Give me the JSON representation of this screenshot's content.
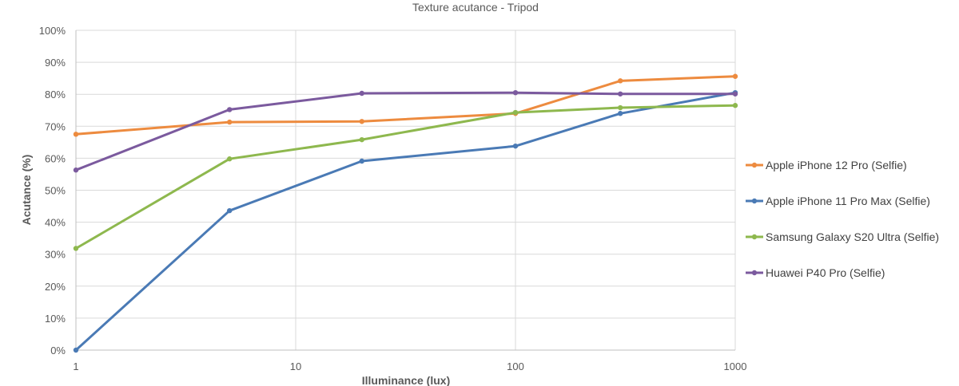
{
  "chart_data": {
    "type": "line",
    "title": "Texture acutance - Tripod",
    "xlabel": "Illuminance (lux)",
    "ylabel": "Acutance (%)",
    "x_scale": "log",
    "xlim": [
      1,
      1000
    ],
    "ylim": [
      0,
      100
    ],
    "x_ticks": [
      "1",
      "10",
      "100",
      "1000"
    ],
    "y_ticks": [
      "0%",
      "10%",
      "20%",
      "30%",
      "40%",
      "50%",
      "60%",
      "70%",
      "80%",
      "90%",
      "100%"
    ],
    "grid": true,
    "legend_position": "right",
    "x": [
      1,
      5,
      20,
      100,
      300,
      1000
    ],
    "series": [
      {
        "name": "Apple iPhone 12 Pro (Selfie)",
        "color": "#ED8B3F",
        "values": [
          67.5,
          71.3,
          71.5,
          74.0,
          84.2,
          85.6
        ]
      },
      {
        "name": "Apple iPhone 11 Pro Max (Selfie)",
        "color": "#4A7AB5",
        "values": [
          0.0,
          43.6,
          59.1,
          63.8,
          74.0,
          80.5
        ]
      },
      {
        "name": "Samsung Galaxy S20 Ultra (Selfie)",
        "color": "#8EB84E",
        "values": [
          31.8,
          59.8,
          65.8,
          74.3,
          75.8,
          76.5
        ]
      },
      {
        "name": "Huawei P40 Pro (Selfie)",
        "color": "#7B5A9E",
        "values": [
          56.3,
          75.2,
          80.3,
          80.5,
          80.1,
          80.1
        ]
      }
    ]
  }
}
